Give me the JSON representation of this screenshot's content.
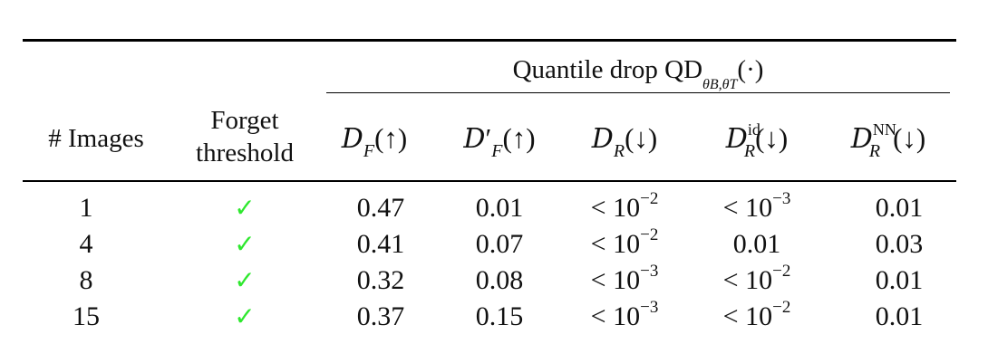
{
  "header": {
    "group_title": "Quantile drop QD",
    "group_sub": "θB,θT",
    "group_arg": "(·)",
    "col_images": "# Images",
    "col_forget_line1": "Forget",
    "col_forget_line2": "threshold",
    "metrics": [
      {
        "base": "D",
        "sub": "F",
        "sup": "",
        "prime": "",
        "arrow": "(↑)"
      },
      {
        "base": "D",
        "sub": "F",
        "sup": "",
        "prime": "′",
        "arrow": "(↑)"
      },
      {
        "base": "D",
        "sub": "R",
        "sup": "",
        "prime": "",
        "arrow": "(↓)"
      },
      {
        "base": "D",
        "sub": "R",
        "sup": "id",
        "prime": "",
        "arrow": "(↓)"
      },
      {
        "base": "D",
        "sub": "R",
        "sup": "NN",
        "prime": "",
        "arrow": "(↓)"
      }
    ]
  },
  "rows": [
    {
      "images": "1",
      "check": "✓",
      "df": "0.47",
      "dfp": "0.01",
      "dr": "< 10",
      "dr_exp": "−2",
      "drid": "< 10",
      "drid_exp": "−3",
      "drnn": "0.01"
    },
    {
      "images": "4",
      "check": "✓",
      "df": "0.41",
      "dfp": "0.07",
      "dr": "< 10",
      "dr_exp": "−2",
      "drid": "0.01",
      "drid_exp": "",
      "drnn": "0.03"
    },
    {
      "images": "8",
      "check": "✓",
      "df": "0.32",
      "dfp": "0.08",
      "dr": "< 10",
      "dr_exp": "−3",
      "drid": "< 10",
      "drid_exp": "−2",
      "drnn": "0.01"
    },
    {
      "images": "15",
      "check": "✓",
      "df": "0.37",
      "dfp": "0.15",
      "dr": "< 10",
      "dr_exp": "−3",
      "drid": "< 10",
      "drid_exp": "−2",
      "drnn": "0.01"
    }
  ]
}
